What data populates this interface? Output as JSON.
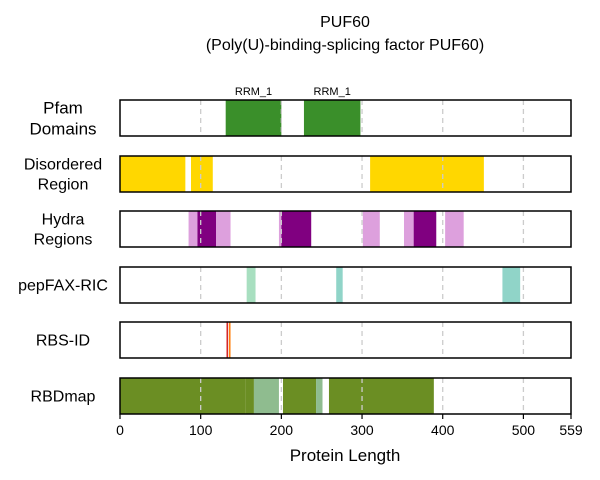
{
  "chart_data": {
    "type": "bar",
    "title": "PUF60",
    "subtitle": "(Poly(U)-binding-splicing factor PUF60)",
    "xlabel": "Protein Length",
    "protein_length": 559,
    "xlim": [
      0,
      559
    ],
    "xticks": [
      0,
      100,
      200,
      300,
      400,
      500,
      559
    ],
    "grid_x": [
      100,
      200,
      300,
      400,
      500
    ],
    "tracks": [
      {
        "label_lines": [
          "Pfam",
          "Domains"
        ],
        "segments": [
          {
            "start": 131,
            "end": 200,
            "color": "#3a8f2a",
            "label": "RRM_1"
          },
          {
            "start": 228,
            "end": 298,
            "color": "#3a8f2a",
            "label": "RRM_1"
          }
        ]
      },
      {
        "label_lines": [
          "Disordered",
          "Region"
        ],
        "segments": [
          {
            "start": 0,
            "end": 81,
            "color": "#ffd700"
          },
          {
            "start": 88,
            "end": 115,
            "color": "#ffd700"
          },
          {
            "start": 310,
            "end": 451,
            "color": "#ffd700"
          }
        ]
      },
      {
        "label_lines": [
          "Hydra",
          "Regions"
        ],
        "segments": [
          {
            "start": 85,
            "end": 96,
            "color": "#dda0dd"
          },
          {
            "start": 96,
            "end": 119,
            "color": "#800080"
          },
          {
            "start": 119,
            "end": 137,
            "color": "#dda0dd"
          },
          {
            "start": 197,
            "end": 200,
            "color": "#dda0dd"
          },
          {
            "start": 200,
            "end": 237,
            "color": "#800080"
          },
          {
            "start": 301,
            "end": 322,
            "color": "#dda0dd"
          },
          {
            "start": 352,
            "end": 364,
            "color": "#dda0dd"
          },
          {
            "start": 364,
            "end": 392,
            "color": "#800080"
          },
          {
            "start": 403,
            "end": 426,
            "color": "#dda0dd"
          }
        ]
      },
      {
        "label_lines": [
          "pepFAX-RIC"
        ],
        "segments": [
          {
            "start": 157,
            "end": 168,
            "color": "#a8dfc0"
          },
          {
            "start": 268,
            "end": 276,
            "color": "#90d4c8"
          },
          {
            "start": 474,
            "end": 496,
            "color": "#90d4c8"
          }
        ]
      },
      {
        "label_lines": [
          "RBS-ID"
        ],
        "segments": [
          {
            "start": 132,
            "end": 134,
            "color": "#d62728"
          },
          {
            "start": 135,
            "end": 137,
            "color": "#ff7f0e"
          }
        ]
      },
      {
        "label_lines": [
          "RBDmap"
        ],
        "segments": [
          {
            "start": 0,
            "end": 156,
            "color": "#6b8e23"
          },
          {
            "start": 156,
            "end": 166,
            "color": "#6b8e23"
          },
          {
            "start": 166,
            "end": 197,
            "color": "#8fbc8f"
          },
          {
            "start": 202,
            "end": 243,
            "color": "#6b8e23"
          },
          {
            "start": 243,
            "end": 251,
            "color": "#8fbc8f"
          },
          {
            "start": 259,
            "end": 389,
            "color": "#6b8e23"
          }
        ]
      }
    ]
  }
}
